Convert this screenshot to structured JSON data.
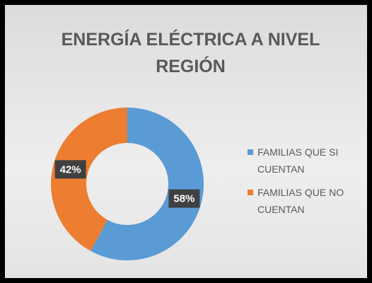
{
  "chart_data": {
    "type": "donut",
    "title": "ENERGÍA ELÉCTRICA A NIVEL REGIÓN",
    "categories": [
      "FAMILIAS QUE SI CUENTAN",
      "FAMILIAS QUE NO CUENTAN"
    ],
    "values": [
      58,
      42
    ],
    "value_labels": [
      "58%",
      "42%"
    ],
    "colors": [
      "#5b9bd5",
      "#ed7d31"
    ],
    "legend": "right"
  }
}
